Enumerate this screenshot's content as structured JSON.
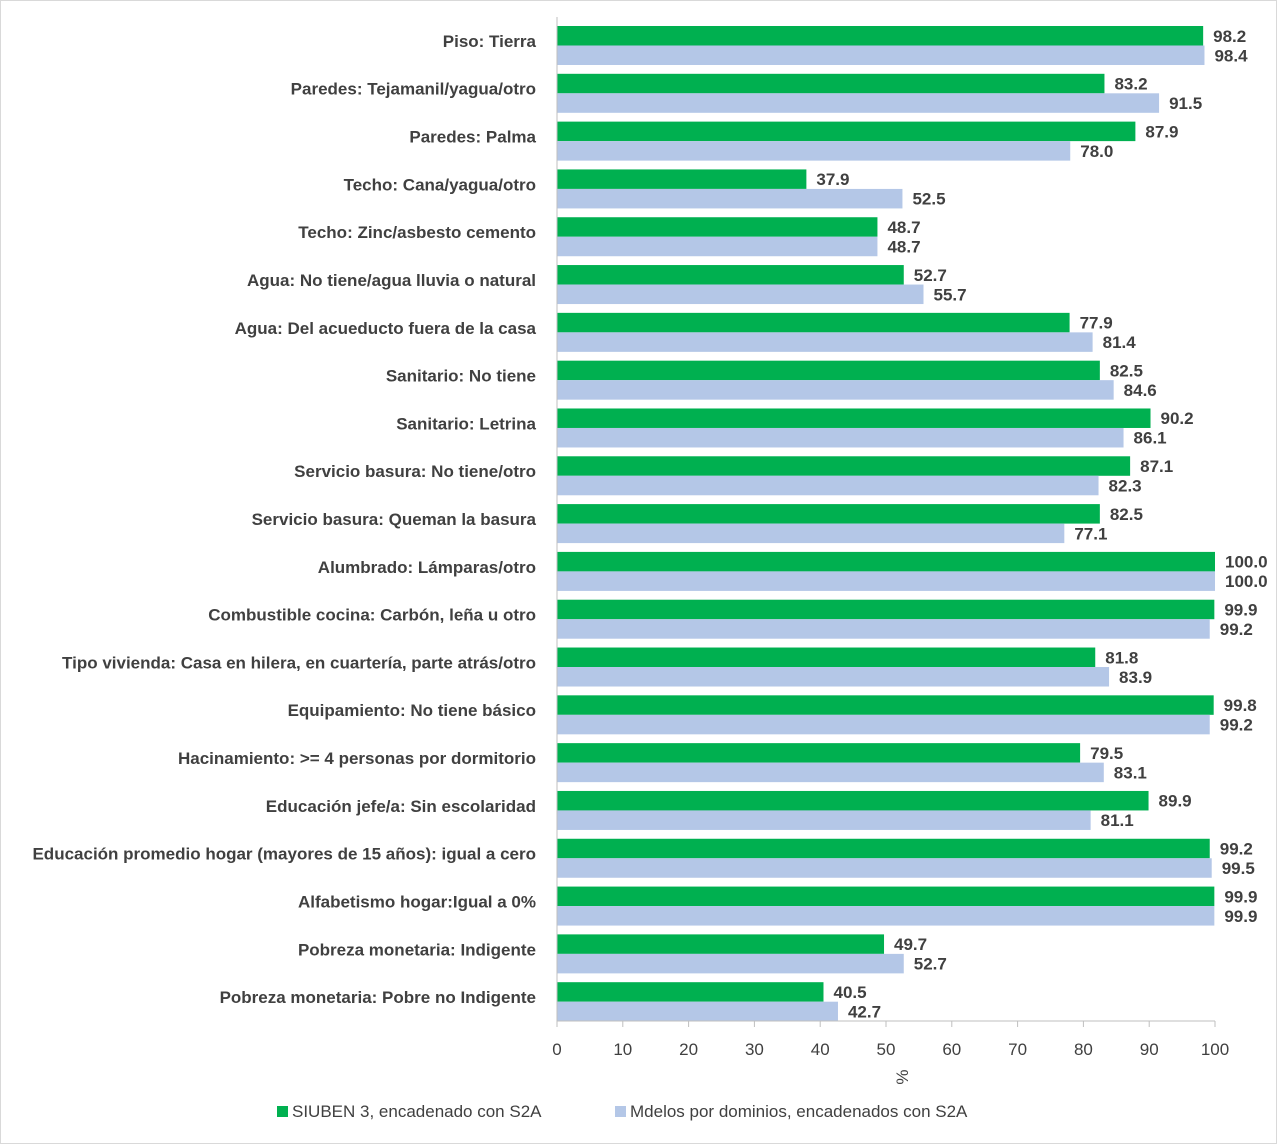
{
  "chart_data": {
    "type": "bar",
    "orientation": "horizontal",
    "title": "",
    "xlabel": "%",
    "ylabel": "",
    "xlim": [
      0,
      100
    ],
    "xticks": [
      0,
      10,
      20,
      30,
      40,
      50,
      60,
      70,
      80,
      90,
      100
    ],
    "grid": false,
    "legend_position": "bottom",
    "value_format": "0.0",
    "categories": [
      "Piso: Tierra",
      "Paredes: Tejamanil/yagua/otro",
      "Paredes: Palma",
      "Techo: Cana/yagua/otro",
      "Techo: Zinc/asbesto cemento",
      "Agua: No tiene/agua lluvia o natural",
      "Agua: Del acueducto fuera de la casa",
      "Sanitario: No tiene",
      "Sanitario: Letrina",
      "Servicio basura: No tiene/otro",
      "Servicio basura: Queman la basura",
      "Alumbrado: Lámparas/otro",
      "Combustible cocina: Carbón, leña u otro",
      "Tipo vivienda: Casa en hilera, en cuartería, parte atrás/otro",
      "Equipamiento: No tiene básico",
      "Hacinamiento: >= 4 personas por dormitorio",
      "Educación jefe/a: Sin escolaridad",
      "Educación promedio hogar (mayores de 15 años): igual a cero",
      "Alfabetismo hogar:Igual a 0%",
      "Pobreza monetaria: Indigente",
      "Pobreza monetaria: Pobre no Indigente"
    ],
    "series": [
      {
        "name": "SIUBEN 3, encadenado con S2A",
        "color": "#00b050",
        "values": [
          98.2,
          83.2,
          87.9,
          37.9,
          48.7,
          52.7,
          77.9,
          82.5,
          90.2,
          87.1,
          82.5,
          100.0,
          99.9,
          81.8,
          99.8,
          79.5,
          89.9,
          99.2,
          99.9,
          49.7,
          40.5
        ]
      },
      {
        "name": "Mdelos por dominios, encadenados con S2A",
        "color": "#b4c7e7",
        "values": [
          98.4,
          91.5,
          78.0,
          52.5,
          48.7,
          55.7,
          81.4,
          84.6,
          86.1,
          82.3,
          77.1,
          100.0,
          99.2,
          83.9,
          99.2,
          83.1,
          81.1,
          99.5,
          99.9,
          52.7,
          42.7
        ]
      }
    ],
    "axis_color": "#bfbfbf",
    "text_color": "#404040"
  }
}
